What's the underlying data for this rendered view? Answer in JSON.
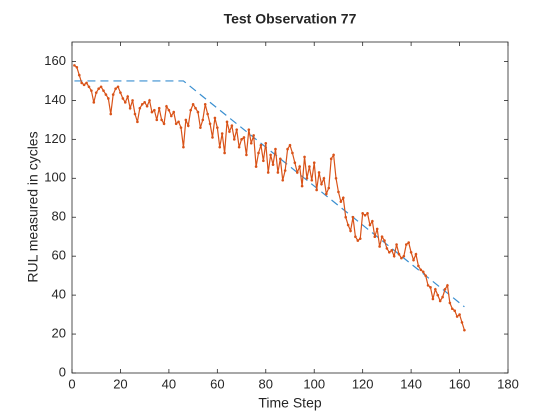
{
  "chart_data": {
    "type": "line",
    "title": "Test Observation 77",
    "x_label": "Time Step",
    "y_label": "RUL measured in cycles",
    "xlim": [
      0,
      180
    ],
    "xticks": [
      0,
      20,
      40,
      60,
      80,
      100,
      120,
      140,
      160,
      180
    ],
    "ylim": [
      0,
      170
    ],
    "yticks": [
      0,
      20,
      40,
      60,
      80,
      100,
      120,
      140,
      160
    ],
    "series": [
      {
        "color": "#3a8fd0",
        "style": "dashed",
        "marker": false,
        "x": [
          1,
          46,
          162
        ],
        "values": [
          150,
          150,
          34
        ]
      },
      {
        "color": "#d95319",
        "style": "solid",
        "marker": true,
        "x": [
          1,
          2,
          3,
          4,
          5,
          6,
          7,
          8,
          9,
          10,
          11,
          12,
          13,
          14,
          15,
          16,
          17,
          18,
          19,
          20,
          21,
          22,
          23,
          24,
          25,
          26,
          27,
          28,
          29,
          30,
          31,
          32,
          33,
          34,
          35,
          36,
          37,
          38,
          39,
          40,
          41,
          42,
          43,
          44,
          45,
          46,
          47,
          48,
          49,
          50,
          51,
          52,
          53,
          54,
          55,
          56,
          57,
          58,
          59,
          60,
          61,
          62,
          63,
          64,
          65,
          66,
          67,
          68,
          69,
          70,
          71,
          72,
          73,
          74,
          75,
          76,
          77,
          78,
          79,
          80,
          81,
          82,
          83,
          84,
          85,
          86,
          87,
          88,
          89,
          90,
          91,
          92,
          93,
          94,
          95,
          96,
          97,
          98,
          99,
          100,
          101,
          102,
          103,
          104,
          105,
          106,
          107,
          108,
          109,
          110,
          111,
          112,
          113,
          114,
          115,
          116,
          117,
          118,
          119,
          120,
          121,
          122,
          123,
          124,
          125,
          126,
          127,
          128,
          129,
          130,
          131,
          132,
          133,
          134,
          135,
          136,
          137,
          138,
          139,
          140,
          141,
          142,
          143,
          144,
          145,
          146,
          147,
          148,
          149,
          150,
          151,
          152,
          153,
          154,
          155,
          156,
          157,
          158,
          159,
          160,
          161,
          162
        ],
        "values": [
          158,
          157,
          153,
          149,
          148,
          149,
          147,
          145,
          139,
          144,
          146,
          147,
          145,
          143,
          141,
          133,
          143,
          146,
          147,
          144,
          141,
          139,
          142,
          136,
          140,
          133,
          129,
          136,
          138,
          139,
          137,
          140,
          134,
          135,
          130,
          136,
          130,
          128,
          137,
          135,
          132,
          134,
          128,
          129,
          126,
          116,
          130,
          127,
          135,
          138,
          136,
          134,
          126,
          130,
          138,
          133,
          128,
          121,
          131,
          126,
          116,
          123,
          113,
          129,
          124,
          127,
          120,
          125,
          116,
          120,
          121,
          112,
          125,
          118,
          122,
          106,
          113,
          117,
          109,
          118,
          103,
          112,
          107,
          115,
          103,
          110,
          99,
          104,
          115,
          117,
          113,
          108,
          103,
          106,
          96,
          111,
          100,
          106,
          99,
          108,
          94,
          103,
          97,
          100,
          92,
          95,
          110,
          112,
          100,
          93,
          88,
          90,
          80,
          76,
          73,
          80,
          70,
          68,
          69,
          82,
          81,
          82,
          76,
          78,
          70,
          74,
          65,
          70,
          68,
          64,
          62,
          63,
          60,
          66,
          61,
          59,
          60,
          66,
          67,
          62,
          58,
          61,
          55,
          53,
          52,
          50,
          45,
          44,
          38,
          43,
          40,
          37,
          39,
          43,
          45,
          36,
          33,
          32,
          29,
          30,
          26,
          22
        ]
      }
    ]
  }
}
